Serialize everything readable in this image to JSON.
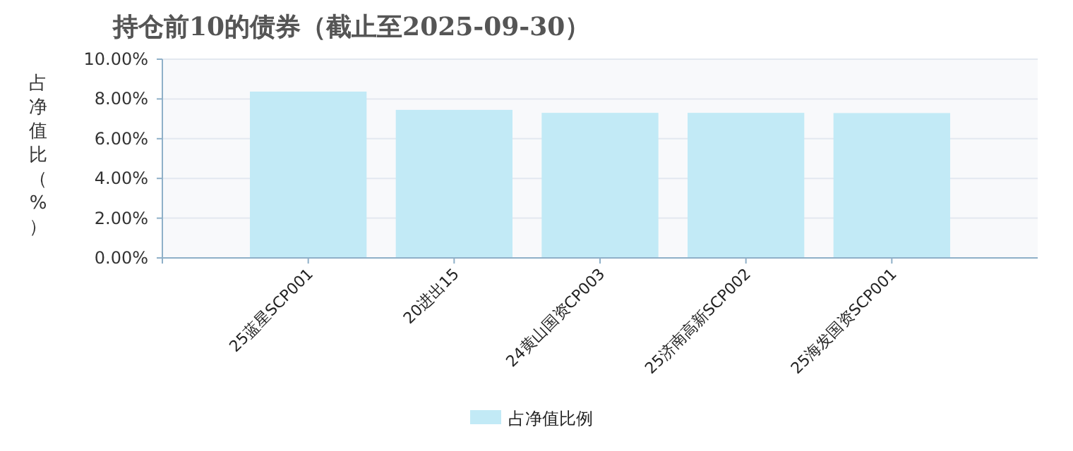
{
  "chart_data": {
    "type": "bar",
    "title": "持仓前10的债券（截止至2025-09-30）",
    "ylabel": "占净值比（%）",
    "categories": [
      "25蓝星SCP001",
      "20进出15",
      "24黄山国资CP003",
      "25济南高新SCP002",
      "25海发国资SCP001"
    ],
    "series": [
      {
        "name": "占净值比例",
        "color": "#c2eaf6",
        "values": [
          8.37,
          7.45,
          7.3,
          7.3,
          7.29
        ]
      }
    ],
    "ylim": [
      0,
      10
    ],
    "yticks": [
      {
        "value": 0,
        "label": "0.00%"
      },
      {
        "value": 2,
        "label": "2.00%"
      },
      {
        "value": 4,
        "label": "4.00%"
      },
      {
        "value": 6,
        "label": "6.00%"
      },
      {
        "value": 8,
        "label": "8.00%"
      },
      {
        "value": 10,
        "label": "10.00%"
      }
    ],
    "grid": "y",
    "legend": "bottom"
  }
}
